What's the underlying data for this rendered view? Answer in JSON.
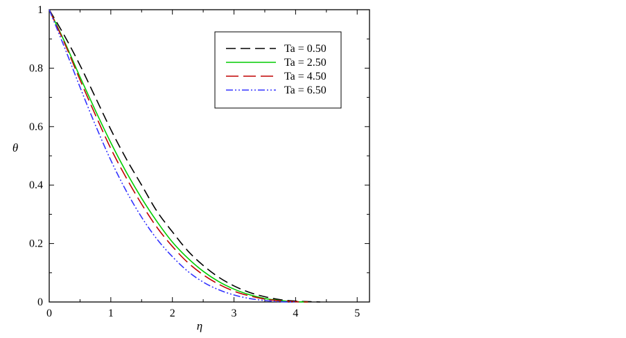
{
  "chart_data": {
    "type": "line",
    "title": "",
    "xlabel": "η",
    "ylabel": "θ",
    "xlim": [
      0,
      5.2
    ],
    "ylim": [
      0,
      1
    ],
    "xticks": [
      0,
      1,
      2,
      3,
      4,
      5
    ],
    "yticks": [
      0,
      0.2,
      0.4,
      0.6,
      0.8,
      1
    ],
    "xtick_labels": [
      "0",
      "1",
      "2",
      "3",
      "4",
      "5"
    ],
    "ytick_labels": [
      "0",
      "0.2",
      "0.4",
      "0.6",
      "0.8",
      "1"
    ],
    "grid": false,
    "legend_position": "top-right",
    "series": [
      {
        "name": "Ta = 0.50",
        "color": "#000000",
        "dash": "dashed",
        "x": [
          0,
          0.25,
          0.5,
          0.75,
          1.0,
          1.25,
          1.5,
          1.75,
          2.0,
          2.25,
          2.5,
          2.75,
          3.0,
          3.25,
          3.5,
          3.75,
          4.0,
          4.25,
          4.4
        ],
        "y": [
          1.0,
          0.91,
          0.81,
          0.7,
          0.59,
          0.49,
          0.4,
          0.31,
          0.24,
          0.175,
          0.125,
          0.085,
          0.055,
          0.033,
          0.018,
          0.008,
          0.003,
          0.001,
          0.0
        ]
      },
      {
        "name": "Ta = 2.50",
        "color": "#00cc00",
        "dash": "solid",
        "x": [
          0,
          0.25,
          0.5,
          0.75,
          1.0,
          1.25,
          1.5,
          1.75,
          2.0,
          2.25,
          2.5,
          2.75,
          3.0,
          3.25,
          3.5,
          3.75,
          4.0,
          4.2
        ],
        "y": [
          1.0,
          0.89,
          0.77,
          0.655,
          0.545,
          0.445,
          0.355,
          0.275,
          0.205,
          0.15,
          0.105,
          0.07,
          0.044,
          0.025,
          0.012,
          0.005,
          0.001,
          0.0
        ]
      },
      {
        "name": "Ta = 4.50",
        "color": "#c00000",
        "dash": "longdash",
        "x": [
          0,
          0.25,
          0.5,
          0.75,
          1.0,
          1.25,
          1.5,
          1.75,
          2.0,
          2.25,
          2.5,
          2.75,
          3.0,
          3.25,
          3.5,
          3.75,
          4.0,
          4.2
        ],
        "y": [
          1.0,
          0.885,
          0.76,
          0.64,
          0.525,
          0.425,
          0.335,
          0.255,
          0.19,
          0.135,
          0.093,
          0.061,
          0.037,
          0.021,
          0.01,
          0.004,
          0.001,
          0.0
        ]
      },
      {
        "name": "Ta = 6.50",
        "color": "#3333ff",
        "dash": "dashdotdot",
        "x": [
          0,
          0.25,
          0.5,
          0.75,
          1.0,
          1.25,
          1.5,
          1.75,
          2.0,
          2.25,
          2.5,
          2.75,
          3.0,
          3.25,
          3.5,
          3.75,
          4.0
        ],
        "y": [
          1.0,
          0.87,
          0.735,
          0.605,
          0.485,
          0.38,
          0.29,
          0.215,
          0.155,
          0.105,
          0.068,
          0.042,
          0.024,
          0.012,
          0.005,
          0.001,
          0.0
        ]
      }
    ]
  }
}
